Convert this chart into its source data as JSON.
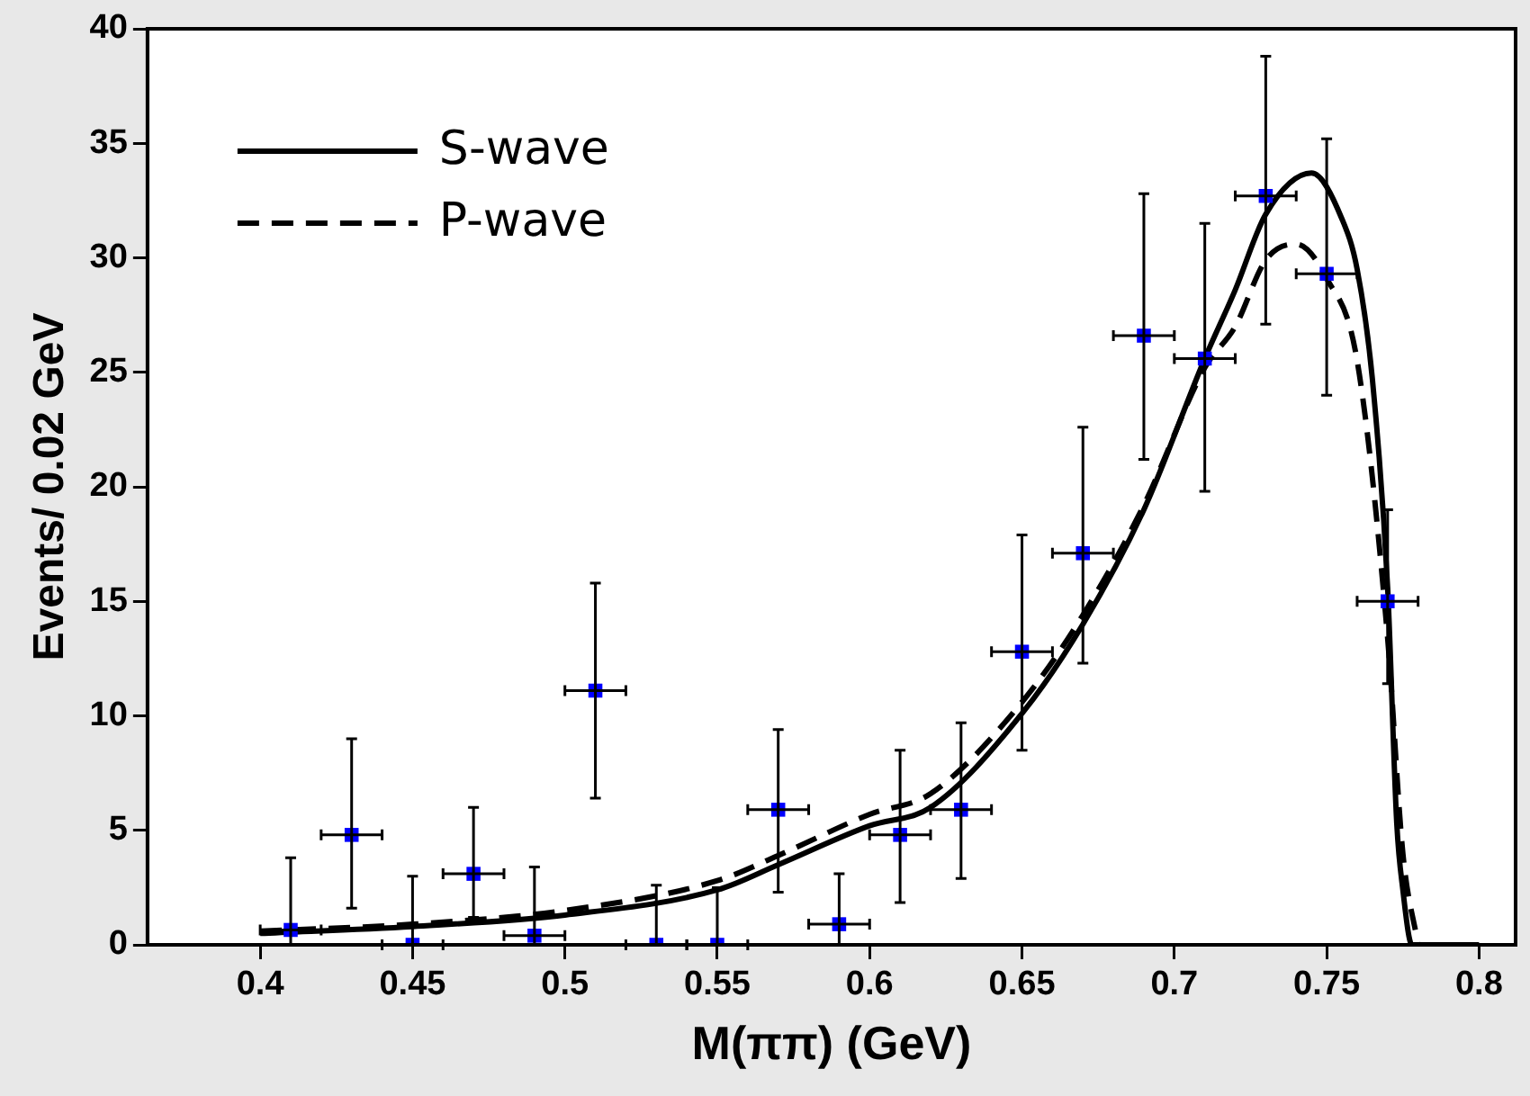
{
  "chart_data": {
    "type": "scatter",
    "xlabel": "M(ππ) (GeV)",
    "ylabel": "Events/ 0.02 GeV",
    "xlim": [
      0.363,
      0.812
    ],
    "xticks": [
      0.4,
      0.45,
      0.5,
      0.55,
      0.6,
      0.65,
      0.7,
      0.75,
      0.8
    ],
    "ylim": [
      0,
      40
    ],
    "yticks": [
      0,
      5,
      10,
      15,
      20,
      25,
      30,
      35,
      40
    ],
    "grid": false,
    "legend": "top left",
    "series": [
      {
        "name": "S-wave",
        "type": "line",
        "color": "#000000",
        "line_style": "solid",
        "marker": "none",
        "x": [
          0.4,
          0.45,
          0.5,
          0.55,
          0.57,
          0.6,
          0.62,
          0.65,
          0.67,
          0.69,
          0.71,
          0.72,
          0.73,
          0.745,
          0.755,
          0.76,
          0.765,
          0.77,
          0.773,
          0.775,
          0.778,
          0.8
        ],
        "values": [
          0.5,
          0.8,
          1.3,
          2.4,
          3.5,
          5.2,
          6.0,
          10.1,
          14.0,
          19.0,
          25.6,
          28.6,
          31.9,
          33.7,
          31.7,
          29.5,
          24.7,
          15.6,
          5.3,
          2.4,
          0,
          0
        ]
      },
      {
        "name": "P-wave",
        "type": "line",
        "color": "#000000",
        "line_style": "dashed",
        "marker": "none",
        "x": [
          0.4,
          0.45,
          0.5,
          0.55,
          0.57,
          0.6,
          0.62,
          0.65,
          0.67,
          0.69,
          0.71,
          0.72,
          0.73,
          0.74,
          0.75,
          0.76,
          0.77,
          0.775,
          0.78
        ],
        "values": [
          0.6,
          0.9,
          1.5,
          2.8,
          3.9,
          5.7,
          6.6,
          10.6,
          14.4,
          19.2,
          25.2,
          27.0,
          29.9,
          30.6,
          29.1,
          25.5,
          13.4,
          4.0,
          0
        ]
      },
      {
        "type": "scatter",
        "color": "#0000ff",
        "marker": "square",
        "x": [
          0.41,
          0.43,
          0.45,
          0.47,
          0.49,
          0.51,
          0.53,
          0.55,
          0.57,
          0.59,
          0.61,
          0.63,
          0.65,
          0.67,
          0.69,
          0.71,
          0.73,
          0.75,
          0.77
        ],
        "values": [
          0.65,
          4.8,
          0,
          3.1,
          0.4,
          11.1,
          0,
          0,
          5.9,
          0.9,
          4.8,
          5.9,
          12.8,
          17.1,
          26.6,
          25.6,
          32.7,
          29.3,
          15.0
        ],
        "errors": [
          [
            0,
            3.8
          ],
          [
            1.6,
            9.0
          ],
          [
            0,
            3.0
          ],
          [
            1.2,
            6.0
          ],
          [
            0,
            3.4
          ],
          [
            6.4,
            15.8
          ],
          [
            0,
            2.6
          ],
          [
            0,
            2.5
          ],
          [
            2.3,
            9.4
          ],
          [
            0,
            3.1
          ],
          [
            1.85,
            8.5
          ],
          [
            2.9,
            9.7
          ],
          [
            8.5,
            17.9
          ],
          [
            12.3,
            22.6
          ],
          [
            21.2,
            32.8
          ],
          [
            19.8,
            31.5
          ],
          [
            27.1,
            38.8
          ],
          [
            24.0,
            35.2
          ],
          [
            11.4,
            19.0
          ]
        ],
        "xerrors": [
          0.01,
          0.01,
          0.01,
          0.01,
          0.01,
          0.01,
          0.01,
          0.01,
          0.01,
          0.01,
          0.01,
          0.01,
          0.01,
          0.01,
          0.01,
          0.01,
          0.01,
          0.01,
          0.01
        ]
      }
    ]
  }
}
